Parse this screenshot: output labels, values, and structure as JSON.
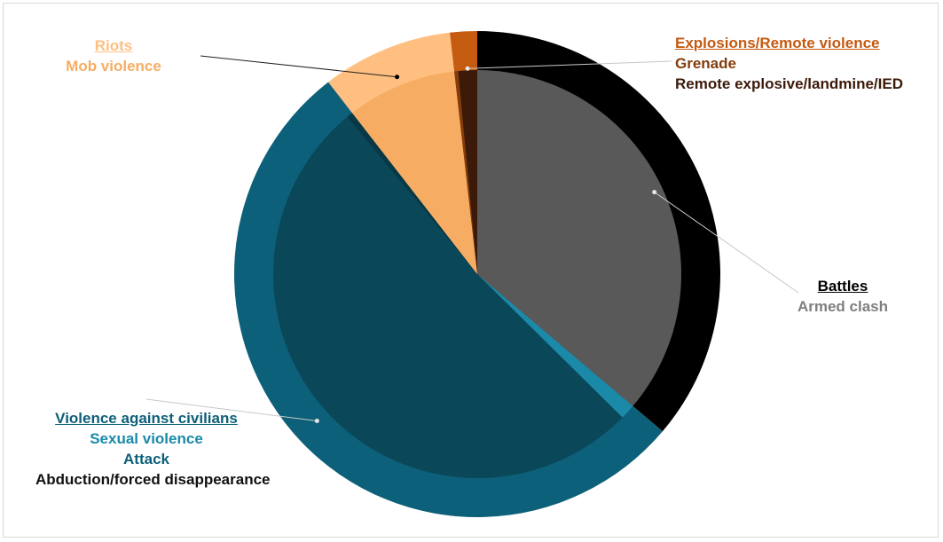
{
  "colors": {
    "battles": "#000000",
    "armed_clash": "#595959",
    "explosions": "#c55a11",
    "grenade": "#843c0c",
    "remote_explosive": "#3b1a0a",
    "riots": "#ffbf80",
    "mob_violence": "#f6ad63",
    "vac": "#0d6079",
    "sexual_violence": "#1a8aa8",
    "attack": "#0a4759",
    "abduction": "#083745",
    "leader": "#c8c8c8",
    "leader_dark": "#222222"
  },
  "chart_data": {
    "type": "pie",
    "title": "",
    "start_angle_deg": 0,
    "direction": "clockwise",
    "outer_ring": [
      {
        "name": "Battles",
        "value": 36.2,
        "color": "#000000"
      },
      {
        "name": "Violence against civilians",
        "value": 53.3,
        "color": "#0d6079"
      },
      {
        "name": "Riots",
        "value": 8.7,
        "color": "#ffbf80"
      },
      {
        "name": "Explosions/Remote violence",
        "value": 1.8,
        "color": "#c55a11"
      }
    ],
    "inner_pie": [
      {
        "name": "Armed clash",
        "parent": "Battles",
        "value": 36.2,
        "color": "#595959"
      },
      {
        "name": "Sexual violence",
        "parent": "Violence against civilians",
        "value": 1.2,
        "color": "#1a8aa8"
      },
      {
        "name": "Attack",
        "parent": "Violence against civilians",
        "value": 51.6,
        "color": "#0a4759"
      },
      {
        "name": "Abduction/forced disappearance",
        "parent": "Violence against civilians",
        "value": 0.5,
        "color": "#083745"
      },
      {
        "name": "Mob violence",
        "parent": "Riots",
        "value": 8.7,
        "color": "#f6ad63"
      },
      {
        "name": "Grenade",
        "parent": "Explosions/Remote violence",
        "value": 0.3,
        "color": "#843c0c"
      },
      {
        "name": "Remote explosive/landmine/IED",
        "parent": "Explosions/Remote violence",
        "value": 1.5,
        "color": "#3b1a0a"
      }
    ]
  },
  "labels": {
    "riots": {
      "category": "Riots",
      "sub": [
        "Mob violence"
      ]
    },
    "explosions": {
      "category": "Explosions/Remote violence",
      "sub": [
        "Grenade",
        "Remote explosive/landmine/IED"
      ]
    },
    "battles": {
      "category": "Battles",
      "sub": [
        "Armed clash"
      ]
    },
    "vac": {
      "category": "Violence against civilians",
      "sub": [
        "Sexual violence",
        "Attack",
        "Abduction/forced disappearance"
      ]
    }
  }
}
